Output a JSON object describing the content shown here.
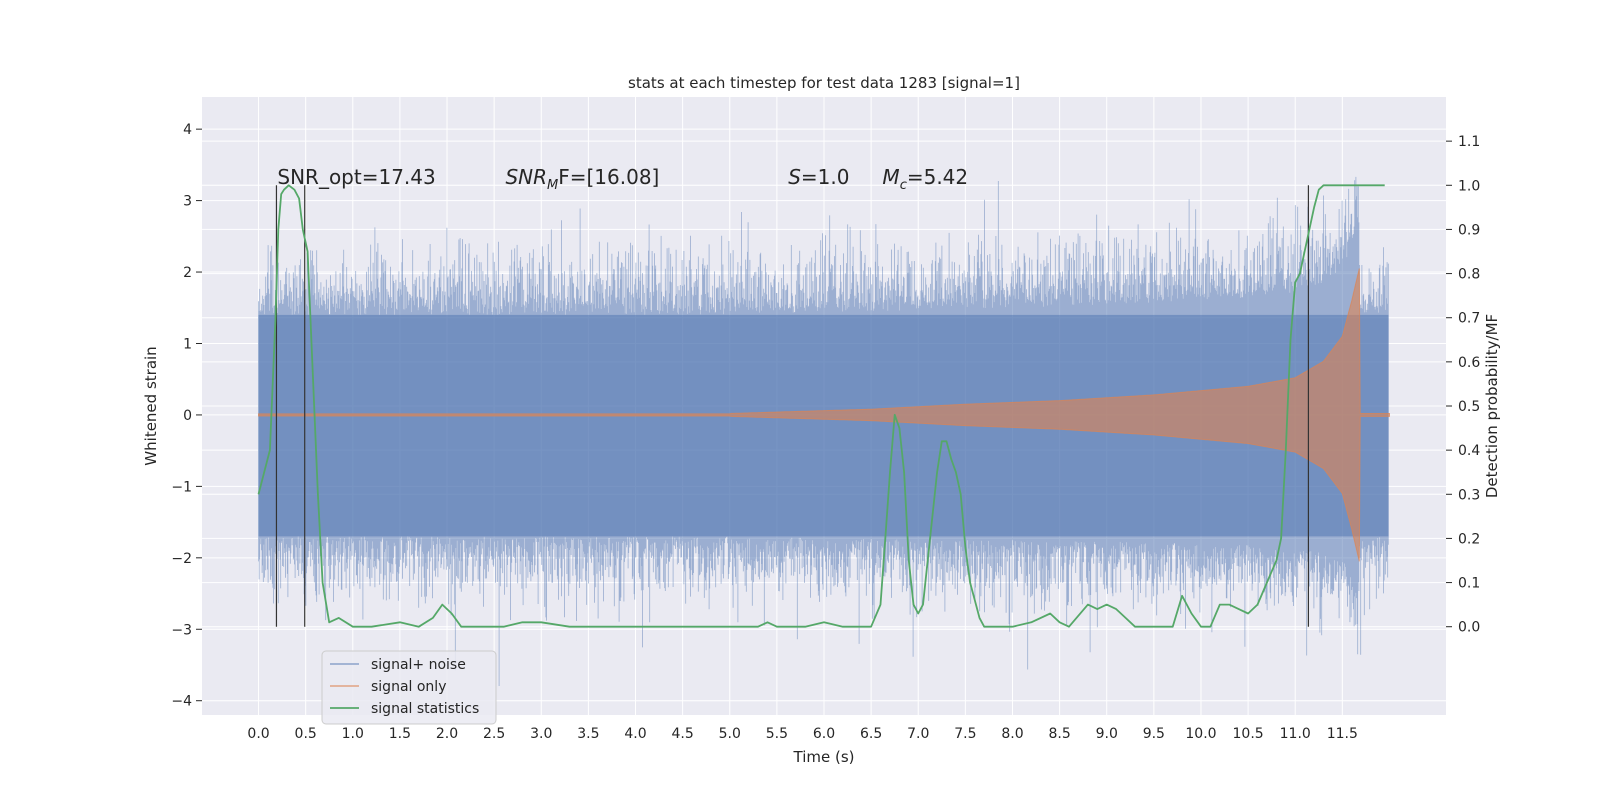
{
  "chart_data": {
    "type": "line",
    "title": "stats at each timestep for test data 1283 [signal=1]",
    "xlabel": "Time (s)",
    "ylabel": "Whitened strain",
    "ylabel_right": "Detection probability/MF",
    "xlim": [
      -0.6,
      12.6
    ],
    "ylim": [
      -4.2,
      4.45
    ],
    "ylim_right": [
      -0.2,
      1.2
    ],
    "xticks": [
      0.0,
      0.5,
      1.0,
      1.5,
      2.0,
      2.5,
      3.0,
      3.5,
      4.0,
      4.5,
      5.0,
      5.5,
      6.0,
      6.5,
      7.0,
      7.5,
      8.0,
      8.5,
      9.0,
      9.5,
      10.0,
      10.5,
      11.0,
      11.5
    ],
    "xtick_labels": [
      "0.0",
      "0.5",
      "1.0",
      "1.5",
      "2.0",
      "2.5",
      "3.0",
      "3.5",
      "4.0",
      "4.5",
      "5.0",
      "5.5",
      "6.0",
      "6.5",
      "7.0",
      "7.5",
      "8.0",
      "8.5",
      "9.0",
      "9.5",
      "10.0",
      "10.5",
      "11.0",
      "11.5"
    ],
    "yticks": [
      -4,
      -3,
      -2,
      -1,
      0,
      1,
      2,
      3,
      4
    ],
    "ytick_labels": [
      "−4",
      "−3",
      "−2",
      "−1",
      "0",
      "1",
      "2",
      "3",
      "4"
    ],
    "yticks_right": [
      0.0,
      0.1,
      0.2,
      0.3,
      0.4,
      0.5,
      0.6,
      0.7,
      0.8,
      0.9,
      1.0,
      1.1
    ],
    "ytick_labels_right": [
      "0.0",
      "0.1",
      "0.2",
      "0.3",
      "0.4",
      "0.5",
      "0.6",
      "0.7",
      "0.8",
      "0.9",
      "1.0",
      "1.1"
    ],
    "grid": true,
    "legend": {
      "placement": "lower-left"
    },
    "series": [
      {
        "name": "signal+ noise",
        "kind": "noise-band",
        "axis": "left",
        "color": "#4c72b0",
        "t_range": [
          0.0,
          11.99
        ],
        "core_band": [
          -1.7,
          1.4
        ],
        "typical_peaks": [
          -2.5,
          2.2
        ],
        "max_value": 4.1,
        "min_value": -3.8
      },
      {
        "name": "signal only",
        "kind": "chirp",
        "axis": "left",
        "color": "#dd8452",
        "t_range": [
          0.0,
          12.0
        ],
        "merger_time": 11.68,
        "peak_amplitude": 2.05,
        "envelope": [
          [
            5.0,
            0.02
          ],
          [
            6.5,
            0.08
          ],
          [
            7.5,
            0.15
          ],
          [
            8.5,
            0.2
          ],
          [
            9.5,
            0.28
          ],
          [
            10.5,
            0.4
          ],
          [
            11.0,
            0.52
          ],
          [
            11.3,
            0.75
          ],
          [
            11.5,
            1.1
          ],
          [
            11.6,
            1.6
          ],
          [
            11.68,
            2.05
          ]
        ]
      },
      {
        "name": "signal statistics",
        "kind": "line",
        "axis": "right",
        "color": "#55a868",
        "x": [
          0.0,
          0.12,
          0.18,
          0.21,
          0.24,
          0.27,
          0.32,
          0.38,
          0.43,
          0.47,
          0.52,
          0.57,
          0.63,
          0.68,
          0.75,
          0.85,
          1.0,
          1.1,
          1.2,
          1.5,
          1.7,
          1.85,
          1.95,
          2.05,
          2.15,
          2.3,
          2.6,
          2.8,
          3.0,
          3.3,
          3.6,
          4.0,
          4.2,
          4.5,
          5.0,
          5.3,
          5.4,
          5.5,
          5.6,
          5.8,
          6.0,
          6.2,
          6.4,
          6.5,
          6.6,
          6.65,
          6.7,
          6.75,
          6.8,
          6.85,
          6.9,
          6.95,
          7.0,
          7.05,
          7.1,
          7.15,
          7.2,
          7.25,
          7.3,
          7.35,
          7.4,
          7.45,
          7.5,
          7.55,
          7.6,
          7.65,
          7.7,
          7.8,
          8.0,
          8.2,
          8.4,
          8.5,
          8.6,
          8.8,
          8.9,
          9.0,
          9.1,
          9.2,
          9.3,
          9.5,
          9.6,
          9.7,
          9.8,
          9.9,
          10.0,
          10.1,
          10.2,
          10.3,
          10.4,
          10.5,
          10.6,
          10.7,
          10.8,
          10.85,
          10.9,
          10.95,
          11.0,
          11.05,
          11.1,
          11.2,
          11.25,
          11.3,
          11.35,
          11.4,
          11.5,
          11.7,
          11.95
        ],
        "values": [
          0.3,
          0.4,
          0.7,
          0.9,
          0.98,
          0.99,
          1.0,
          0.99,
          0.97,
          0.9,
          0.85,
          0.6,
          0.3,
          0.1,
          0.01,
          0.02,
          0.0,
          0.0,
          0.0,
          0.01,
          0.0,
          0.02,
          0.05,
          0.03,
          0.0,
          0.0,
          0.0,
          0.01,
          0.01,
          0.0,
          0.0,
          0.0,
          0.0,
          0.0,
          0.0,
          0.0,
          0.01,
          0.0,
          0.0,
          0.0,
          0.01,
          0.0,
          0.0,
          0.0,
          0.05,
          0.2,
          0.35,
          0.48,
          0.45,
          0.35,
          0.15,
          0.05,
          0.03,
          0.05,
          0.15,
          0.25,
          0.35,
          0.42,
          0.42,
          0.38,
          0.35,
          0.3,
          0.18,
          0.1,
          0.06,
          0.02,
          0.0,
          0.0,
          0.0,
          0.01,
          0.03,
          0.01,
          0.0,
          0.05,
          0.04,
          0.05,
          0.04,
          0.02,
          0.0,
          0.0,
          0.0,
          0.0,
          0.07,
          0.03,
          0.0,
          0.0,
          0.05,
          0.05,
          0.04,
          0.03,
          0.05,
          0.1,
          0.15,
          0.2,
          0.4,
          0.65,
          0.78,
          0.8,
          0.85,
          0.95,
          0.99,
          1.0,
          1.0,
          1.0,
          1.0,
          1.0,
          1.0
        ]
      }
    ],
    "vertical_markers": [
      0.19,
      0.49,
      11.14
    ],
    "vertical_marker_color": "#333333",
    "annotations": [
      {
        "id": "snr-opt",
        "text": "SNR_opt=17.43",
        "x": 0.2
      },
      {
        "id": "snr-mf",
        "main": "SNR",
        "sub": "M",
        "rest": "F=[16.08]",
        "x": 2.62
      },
      {
        "id": "s-value",
        "main": "S",
        "rest": "=1.0",
        "x": 5.62
      },
      {
        "id": "mc-value",
        "main": "M",
        "sub": "c",
        "rest": "=5.42",
        "x": 6.62
      }
    ],
    "colors": {
      "plot_background": "#eaeaf2",
      "grid": "#ffffff"
    }
  }
}
